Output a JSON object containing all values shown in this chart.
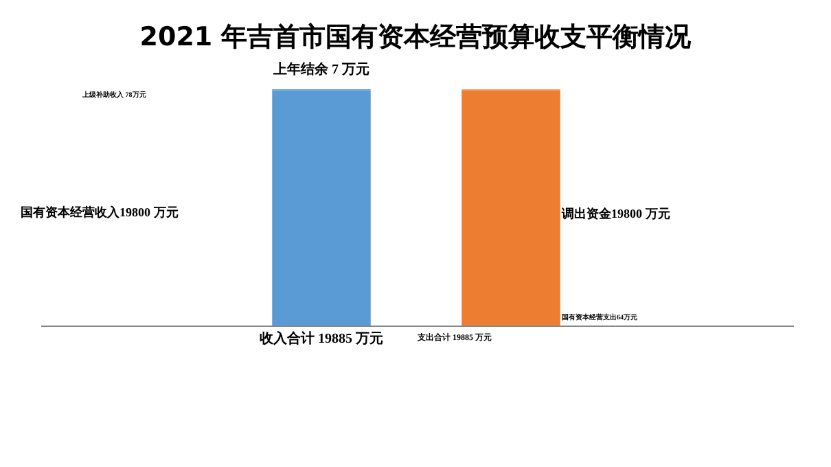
{
  "chart_data": {
    "type": "bar",
    "title": "2021 年吉首市国有资本经营预算收支平衡情况",
    "categories": [
      null,
      null
    ],
    "stacked": true,
    "ylim": [
      0,
      19885
    ],
    "grid": false,
    "legend": false,
    "series": [
      {
        "colors": [
          "#5b9bd5",
          "#ed7d31"
        ],
        "values": [
          19800,
          19800
        ]
      },
      {
        "colors": [
          "#5b9bd5",
          "#ed7d31"
        ],
        "values": [
          78,
          64
        ]
      },
      {
        "colors": [
          "#ed7d31",
          "#ed7d31"
        ],
        "values": [
          7,
          null
        ],
        "value_labels": [
          "上年结余 7 万元",
          null
        ]
      }
    ],
    "annotations": [
      "国有资本经营收入19800 万元",
      "调出资金19800 万元",
      "上级补助收入 78万元",
      "国有资本经营支出64万元"
    ],
    "totals": [
      "收入合计 19885 万元",
      "支出合计 19885 万元"
    ]
  }
}
